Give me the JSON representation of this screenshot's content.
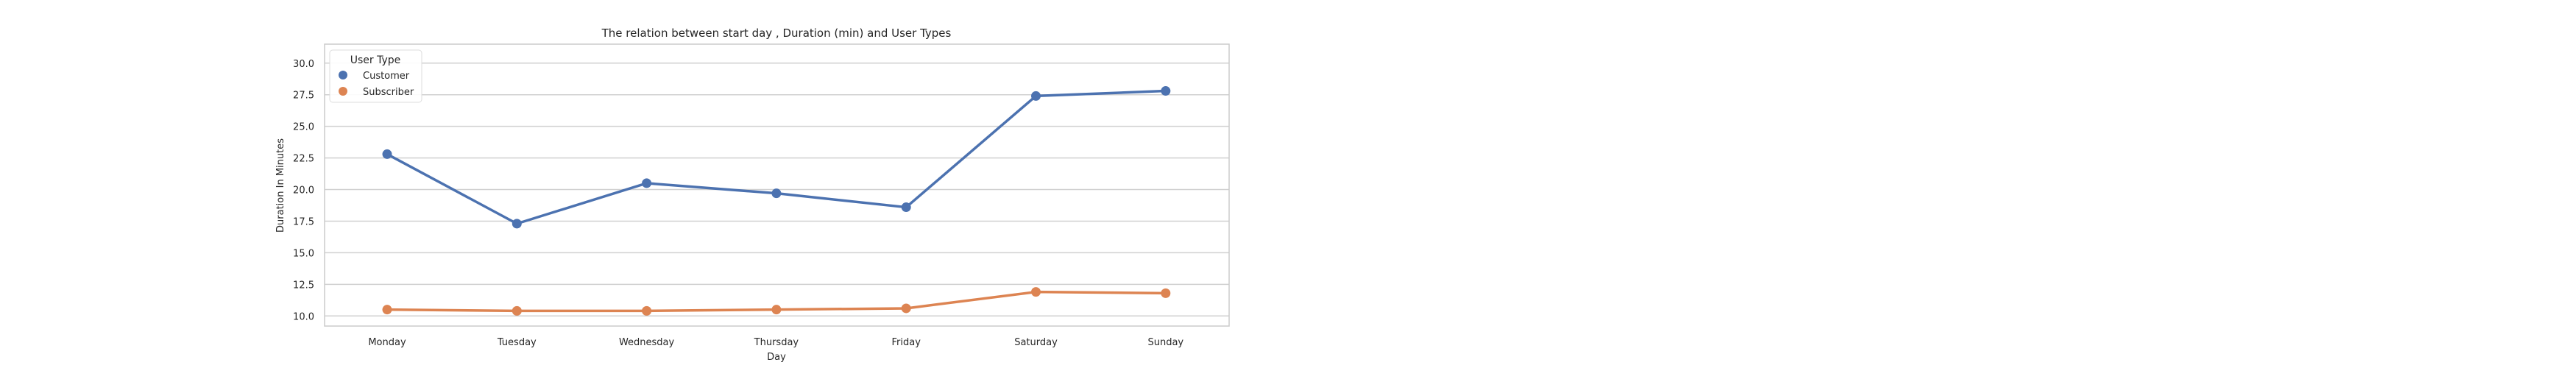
{
  "chart_data": {
    "type": "line",
    "title": "The relation between start day , Duration (min) and User Types",
    "xlabel": "Day",
    "ylabel": "Duration In Minutes",
    "categories": [
      "Monday",
      "Tuesday",
      "Wednesday",
      "Thursday",
      "Friday",
      "Saturday",
      "Sunday"
    ],
    "ylim": [
      9.2,
      31.5
    ],
    "yticks": [
      "10.0",
      "12.5",
      "15.0",
      "17.5",
      "20.0",
      "22.5",
      "25.0",
      "27.5",
      "30.0"
    ],
    "grid": true,
    "legend": {
      "title": "User Type",
      "placement": "top-left"
    },
    "series": [
      {
        "name": "Customer",
        "color": "#4c72b0",
        "values": [
          22.8,
          17.3,
          20.5,
          19.7,
          18.6,
          27.4,
          27.8
        ]
      },
      {
        "name": "Subscriber",
        "color": "#dd8452",
        "values": [
          10.5,
          10.4,
          10.4,
          10.5,
          10.6,
          11.9,
          11.8
        ]
      }
    ]
  }
}
